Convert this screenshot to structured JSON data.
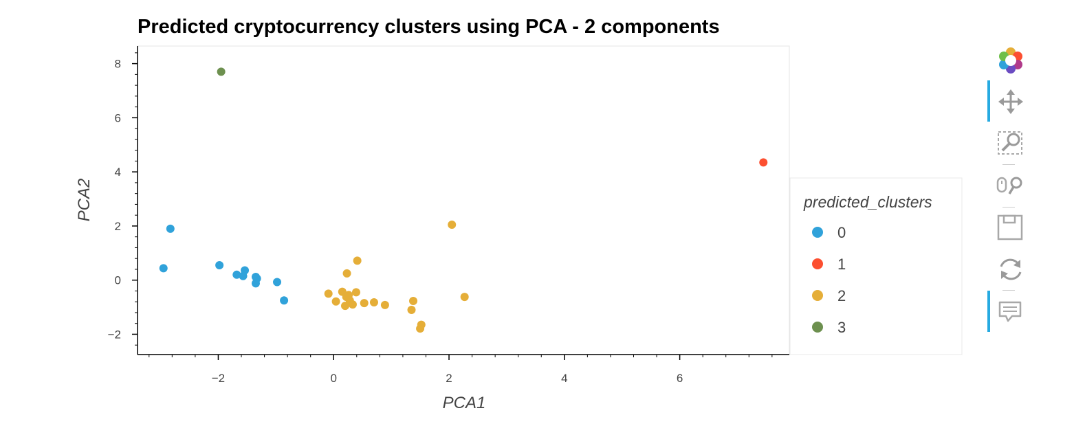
{
  "chart_data": {
    "type": "scatter",
    "title": "Predicted cryptocurrency clusters using PCA - 2 components",
    "xlabel": "PCA1",
    "ylabel": "PCA2",
    "xlim": [
      -3.4,
      7.9
    ],
    "ylim": [
      -2.75,
      8.65
    ],
    "xticks": [
      -2,
      0,
      2,
      4,
      6
    ],
    "yticks": [
      -2,
      0,
      2,
      4,
      6,
      8
    ],
    "tick_labels_x": [
      "−2",
      "0",
      "2",
      "4",
      "6"
    ],
    "tick_labels_y": [
      "−2",
      "0",
      "2",
      "4",
      "6",
      "8"
    ],
    "grid": false,
    "legend": {
      "title": "predicted_clusters",
      "placement": "right",
      "entries": [
        "0",
        "1",
        "2",
        "3"
      ]
    },
    "series": [
      {
        "name": "0",
        "color": "#30a2da",
        "points": [
          [
            -2.83,
            1.9
          ],
          [
            -2.95,
            0.44
          ],
          [
            -1.98,
            0.55
          ],
          [
            -1.68,
            0.2
          ],
          [
            -1.57,
            0.15
          ],
          [
            -1.54,
            0.36
          ],
          [
            -1.35,
            0.12
          ],
          [
            -1.33,
            0.06
          ],
          [
            -1.35,
            -0.12
          ],
          [
            -0.98,
            -0.07
          ],
          [
            -0.86,
            -0.75
          ]
        ]
      },
      {
        "name": "1",
        "color": "#fc4f30",
        "points": [
          [
            7.45,
            4.35
          ]
        ]
      },
      {
        "name": "2",
        "color": "#e5ae38",
        "points": [
          [
            2.05,
            2.05
          ],
          [
            0.41,
            0.72
          ],
          [
            0.23,
            0.25
          ],
          [
            -0.09,
            -0.5
          ],
          [
            0.04,
            -0.79
          ],
          [
            0.15,
            -0.43
          ],
          [
            0.2,
            -0.95
          ],
          [
            0.22,
            -0.62
          ],
          [
            0.26,
            -0.55
          ],
          [
            0.28,
            -0.75
          ],
          [
            0.33,
            -0.9
          ],
          [
            0.39,
            -0.45
          ],
          [
            0.53,
            -0.85
          ],
          [
            0.7,
            -0.82
          ],
          [
            0.89,
            -0.92
          ],
          [
            1.35,
            -1.1
          ],
          [
            1.38,
            -0.77
          ],
          [
            1.52,
            -1.65
          ],
          [
            1.5,
            -1.79
          ],
          [
            2.27,
            -0.62
          ]
        ]
      },
      {
        "name": "3",
        "color": "#6d904f",
        "points": [
          [
            -1.95,
            7.7
          ]
        ]
      }
    ]
  },
  "toolbar": {
    "tools": [
      "bokeh-logo-icon",
      "pan-icon",
      "box-zoom-icon",
      "wheel-zoom-icon",
      "save-icon",
      "reset-icon",
      "hover-icon"
    ]
  }
}
